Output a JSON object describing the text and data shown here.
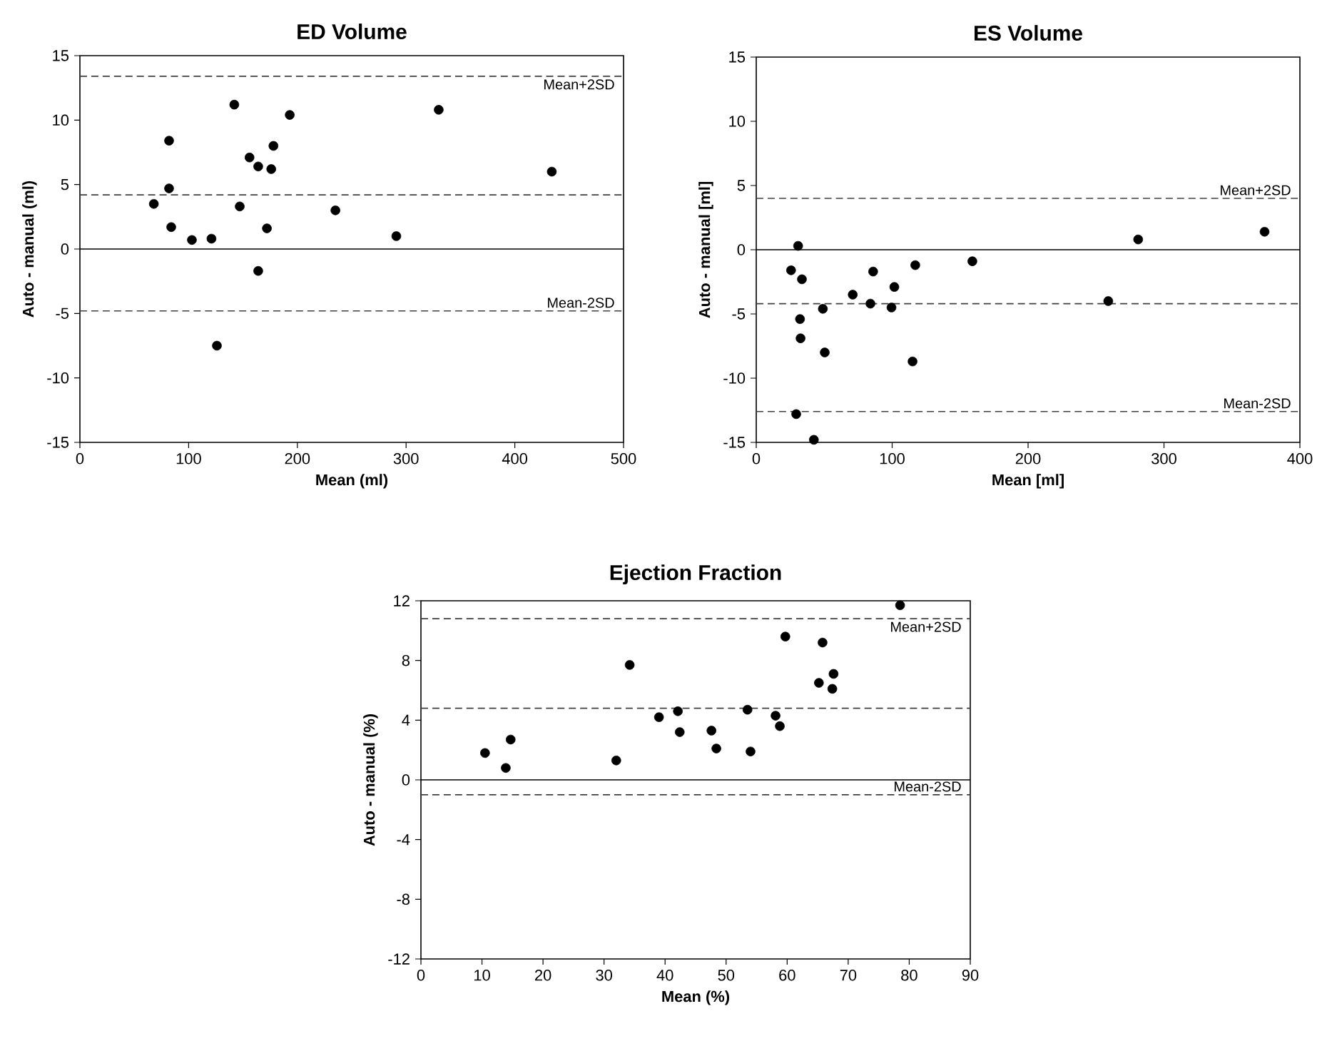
{
  "chart_data": [
    {
      "type": "scatter",
      "title": "ED Volume",
      "xlabel": "Mean (ml)",
      "ylabel": "Auto - manual (ml)",
      "xlim": [
        0,
        500
      ],
      "ylim": [
        -15,
        15
      ],
      "xticks": [
        0,
        100,
        200,
        300,
        400,
        500
      ],
      "yticks": [
        -15,
        -10,
        -5,
        0,
        5,
        10,
        15
      ],
      "marker": "circle",
      "series": [
        {
          "color": "#000000",
          "x": [
            68,
            82,
            82,
            84,
            103,
            121,
            142,
            147,
            156,
            164,
            178,
            176,
            172,
            164,
            126,
            193,
            235,
            291,
            330,
            434
          ],
          "values": [
            3.5,
            8.4,
            4.7,
            1.7,
            0.7,
            0.8,
            11.2,
            3.3,
            7.1,
            6.4,
            8.0,
            6.2,
            1.6,
            -1.7,
            -7.5,
            10.4,
            3.0,
            1.0,
            10.8,
            6.0
          ]
        }
      ],
      "ref_lines": [
        {
          "axis": "y",
          "value": 13.4,
          "label": "Mean+2SD",
          "color": "#404040",
          "line_style": "dashed"
        },
        {
          "axis": "y",
          "value": 4.2,
          "color": "#404040",
          "line_style": "dashed"
        },
        {
          "axis": "y",
          "value": 0,
          "color": "#000000",
          "line_style": "solid"
        },
        {
          "axis": "y",
          "value": -4.8,
          "label": "Mean-2SD",
          "color": "#404040",
          "line_style": "dashed"
        }
      ]
    },
    {
      "type": "scatter",
      "title": "ES Volume",
      "xlabel": "Mean [ml]",
      "ylabel": "Auto - manual [ml]",
      "xlim": [
        0,
        400
      ],
      "ylim": [
        -15,
        15
      ],
      "xticks": [
        0,
        100,
        200,
        300,
        400
      ],
      "yticks": [
        -15,
        -10,
        -5,
        0,
        5,
        10,
        15
      ],
      "marker": "circle",
      "series": [
        {
          "color": "#000000",
          "x": [
            30.8,
            25.6,
            33.6,
            32.2,
            32.6,
            49,
            50.4,
            29.4,
            42.4,
            71,
            84,
            86,
            99.5,
            101.6,
            115,
            117,
            159,
            259,
            281,
            374
          ],
          "values": [
            0.3,
            -1.6,
            -2.3,
            -5.4,
            -6.9,
            -4.6,
            -8.0,
            -12.8,
            -14.8,
            -3.5,
            -4.2,
            -1.7,
            -4.5,
            -2.9,
            -8.7,
            -1.2,
            -0.9,
            -4.0,
            0.8,
            1.4
          ]
        }
      ],
      "ref_lines": [
        {
          "axis": "y",
          "value": 4.0,
          "label": "Mean+2SD",
          "color": "#404040",
          "line_style": "dashed"
        },
        {
          "axis": "y",
          "value": -4.2,
          "color": "#404040",
          "line_style": "dashed"
        },
        {
          "axis": "y",
          "value": 0,
          "color": "#000000",
          "line_style": "solid"
        },
        {
          "axis": "y",
          "value": -12.6,
          "label": "Mean-2SD",
          "color": "#404040",
          "line_style": "dashed"
        }
      ]
    },
    {
      "type": "scatter",
      "title": "Ejection Fraction",
      "xlabel": "Mean (%)",
      "ylabel": "Auto - manual (%)",
      "xlim": [
        0,
        90
      ],
      "ylim": [
        -12,
        12
      ],
      "xticks": [
        0,
        10,
        20,
        30,
        40,
        50,
        60,
        70,
        80,
        90
      ],
      "yticks": [
        -12,
        -8,
        -4,
        0,
        4,
        8,
        12
      ],
      "marker": "circle",
      "series": [
        {
          "color": "#000000",
          "x": [
            10.5,
            13.9,
            14.7,
            32,
            34.2,
            39,
            42.1,
            42.4,
            47.6,
            48.4,
            53.5,
            54,
            58.1,
            58.8,
            59.7,
            65.2,
            65.8,
            67.6,
            67.4,
            78.5
          ],
          "values": [
            1.8,
            0.8,
            2.7,
            1.3,
            7.7,
            4.2,
            4.6,
            3.2,
            3.3,
            2.1,
            4.7,
            1.9,
            4.3,
            3.6,
            9.6,
            6.5,
            9.2,
            7.1,
            6.1,
            11.7
          ]
        }
      ],
      "ref_lines": [
        {
          "axis": "y",
          "value": 10.8,
          "label": "Mean+2SD",
          "color": "#404040",
          "line_style": "dashed"
        },
        {
          "axis": "y",
          "value": 4.8,
          "color": "#404040",
          "line_style": "dashed"
        },
        {
          "axis": "y",
          "value": 0,
          "color": "#000000",
          "line_style": "solid"
        },
        {
          "axis": "y",
          "value": -1.0,
          "label": "Mean-2SD",
          "color": "#404040",
          "line_style": "dashed"
        }
      ]
    }
  ]
}
